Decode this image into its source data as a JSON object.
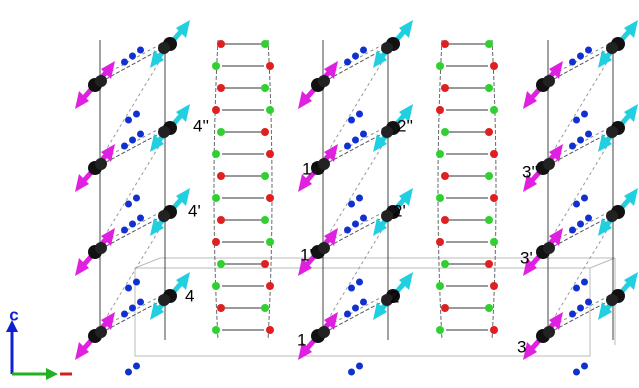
{
  "site_labels": [
    "1",
    "1'",
    "1''",
    "2",
    "2'",
    "2''",
    "3",
    "3'",
    "3''",
    "4",
    "4'",
    "4''"
  ],
  "axis_label": "c"
}
